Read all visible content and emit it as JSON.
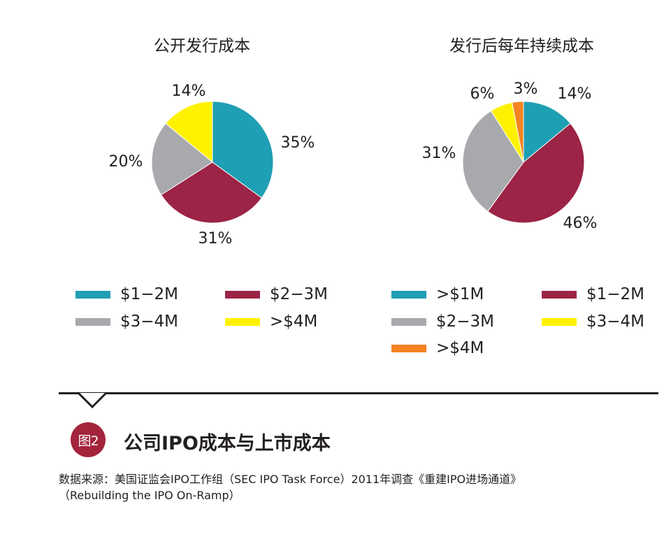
{
  "chart_data": [
    {
      "type": "pie",
      "title": "公开发行成本",
      "categories": [
        "$1−2M",
        "$2−3M",
        "$3−4M",
        ">$4M"
      ],
      "values": [
        35,
        31,
        20,
        14
      ],
      "labels": [
        "35%",
        "31%",
        "20%",
        "14%"
      ],
      "colors": [
        "#1f9fb3",
        "#9c2446",
        "#a7a9ac",
        "#fff200"
      ],
      "legend": "below"
    },
    {
      "type": "pie",
      "title": "发行后每年持续成本",
      "categories": [
        ">$1M",
        "$1−2M",
        "$2−3M",
        "$3−4M",
        ">$4M"
      ],
      "values": [
        14,
        46,
        31,
        6,
        3
      ],
      "labels": [
        "14%",
        "46%",
        "31%",
        "6%",
        "3%"
      ],
      "colors": [
        "#1f9fb3",
        "#9c2446",
        "#a7a9ac",
        "#fff200",
        "#f58220"
      ],
      "legend": "below"
    }
  ],
  "figure": {
    "badge": "图2",
    "title": "公司IPO成本与上市成本",
    "source_line1": "数据来源：美国证监会IPO工作组（SEC IPO Task Force）2011年调查《重建IPO进场通道》",
    "source_line2": "（Rebuilding the IPO On-Ramp）"
  }
}
